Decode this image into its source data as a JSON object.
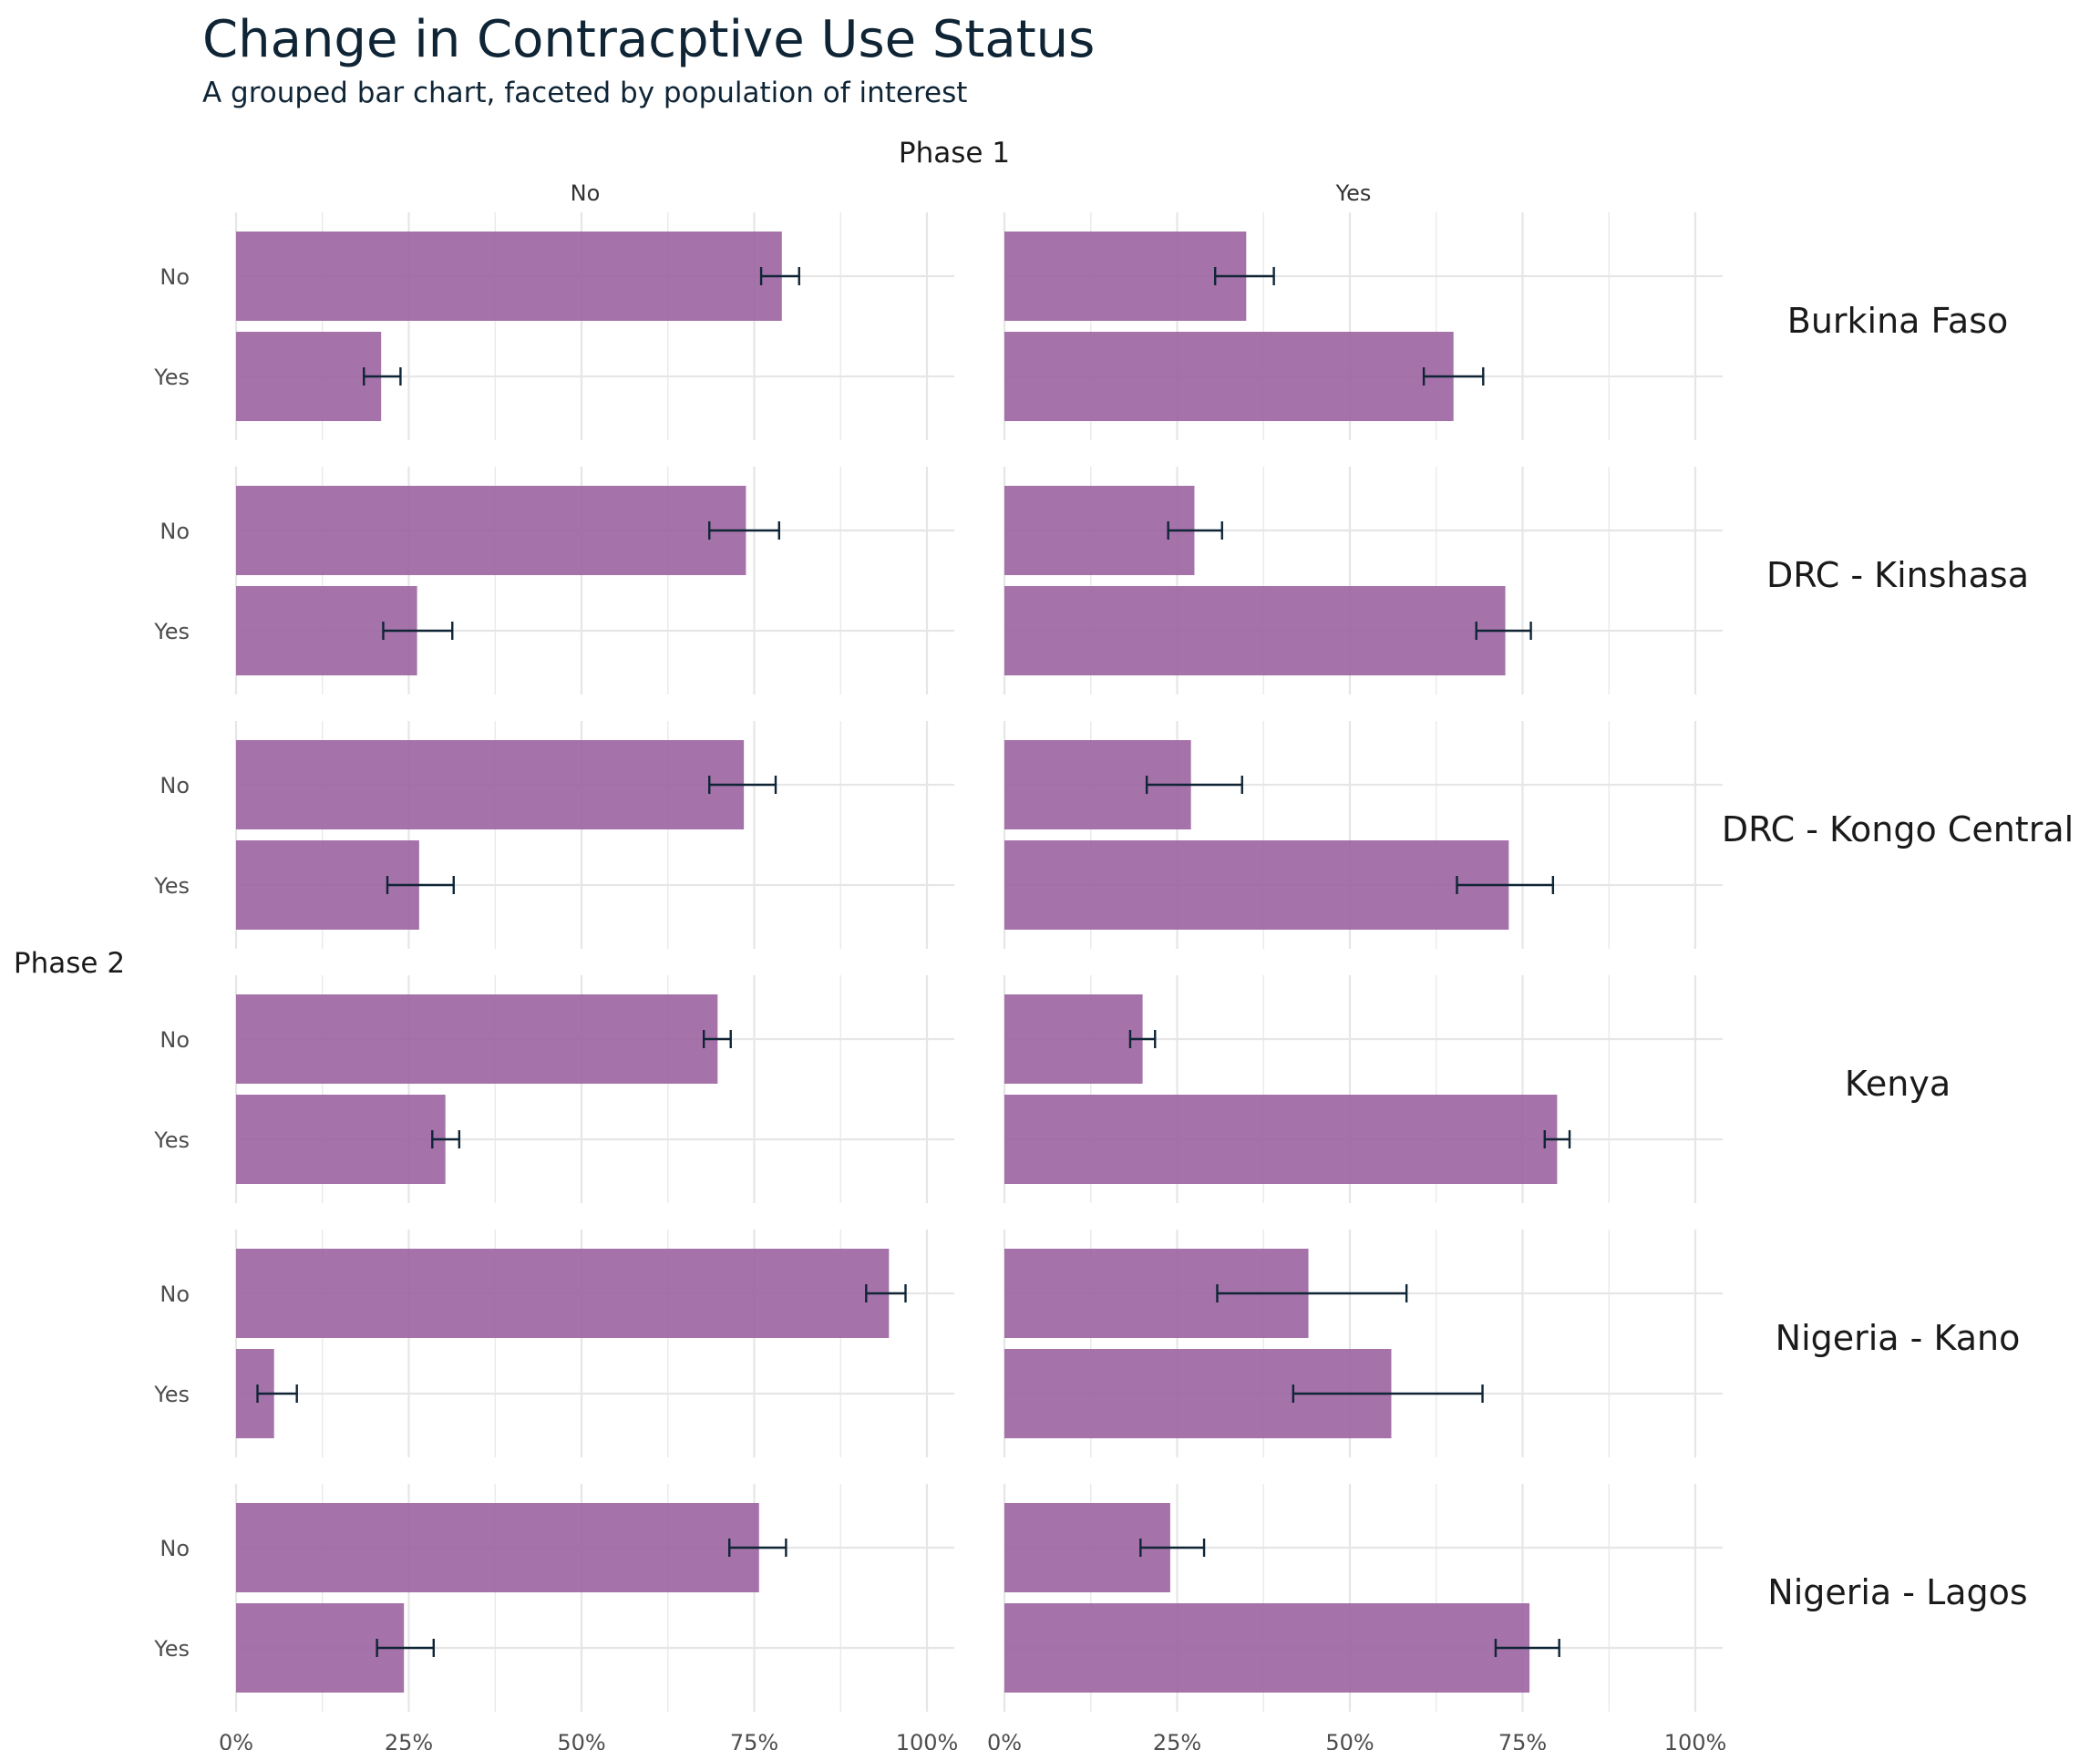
{
  "chart_data": {
    "type": "bar",
    "orientation": "horizontal",
    "title": "Change in Contracptive Use Status",
    "subtitle": "A grouped bar chart, faceted by population of interest",
    "column_facet_title": "Phase 1",
    "row_axis_title": "Phase 2",
    "columns": [
      "No",
      "Yes"
    ],
    "categories": [
      "No",
      "Yes"
    ],
    "x_ticks": [
      "0%",
      "25%",
      "50%",
      "75%",
      "100%"
    ],
    "xlim": [
      0,
      1
    ],
    "bar_color": "#9b64a0",
    "errorbar_color": "#0f2536",
    "grid": true,
    "facets": [
      {
        "name": "Burkina Faso",
        "panels": [
          {
            "column": "No",
            "values": [
              0.79,
              0.21
            ],
            "lower": [
              0.76,
              0.185
            ],
            "upper": [
              0.815,
              0.238
            ]
          },
          {
            "column": "Yes",
            "values": [
              0.35,
              0.65
            ],
            "lower": [
              0.305,
              0.607
            ],
            "upper": [
              0.39,
              0.693
            ]
          }
        ]
      },
      {
        "name": "DRC - Kinshasa",
        "panels": [
          {
            "column": "No",
            "values": [
              0.738,
              0.262
            ],
            "lower": [
              0.685,
              0.213
            ],
            "upper": [
              0.786,
              0.313
            ]
          },
          {
            "column": "Yes",
            "values": [
              0.275,
              0.725
            ],
            "lower": [
              0.237,
              0.683
            ],
            "upper": [
              0.315,
              0.762
            ]
          }
        ]
      },
      {
        "name": "DRC - Kongo Central",
        "panels": [
          {
            "column": "No",
            "values": [
              0.735,
              0.265
            ],
            "lower": [
              0.685,
              0.219
            ],
            "upper": [
              0.781,
              0.315
            ]
          },
          {
            "column": "Yes",
            "values": [
              0.27,
              0.73
            ],
            "lower": [
              0.206,
              0.655
            ],
            "upper": [
              0.344,
              0.794
            ]
          }
        ]
      },
      {
        "name": "Kenya",
        "panels": [
          {
            "column": "No",
            "values": [
              0.697,
              0.303
            ],
            "lower": [
              0.677,
              0.284
            ],
            "upper": [
              0.716,
              0.323
            ]
          },
          {
            "column": "Yes",
            "values": [
              0.2,
              0.8
            ],
            "lower": [
              0.182,
              0.782
            ],
            "upper": [
              0.218,
              0.818
            ]
          }
        ]
      },
      {
        "name": "Nigeria - Kano",
        "panels": [
          {
            "column": "No",
            "values": [
              0.945,
              0.055
            ],
            "lower": [
              0.912,
              0.031
            ],
            "upper": [
              0.969,
              0.088
            ]
          },
          {
            "column": "Yes",
            "values": [
              0.44,
              0.56
            ],
            "lower": [
              0.308,
              0.418
            ],
            "upper": [
              0.582,
              0.692
            ]
          }
        ]
      },
      {
        "name": "Nigeria - Lagos",
        "panels": [
          {
            "column": "No",
            "values": [
              0.757,
              0.243
            ],
            "lower": [
              0.714,
              0.204
            ],
            "upper": [
              0.796,
              0.286
            ]
          },
          {
            "column": "Yes",
            "values": [
              0.24,
              0.76
            ],
            "lower": [
              0.197,
              0.711
            ],
            "upper": [
              0.289,
              0.803
            ]
          }
        ]
      }
    ]
  }
}
